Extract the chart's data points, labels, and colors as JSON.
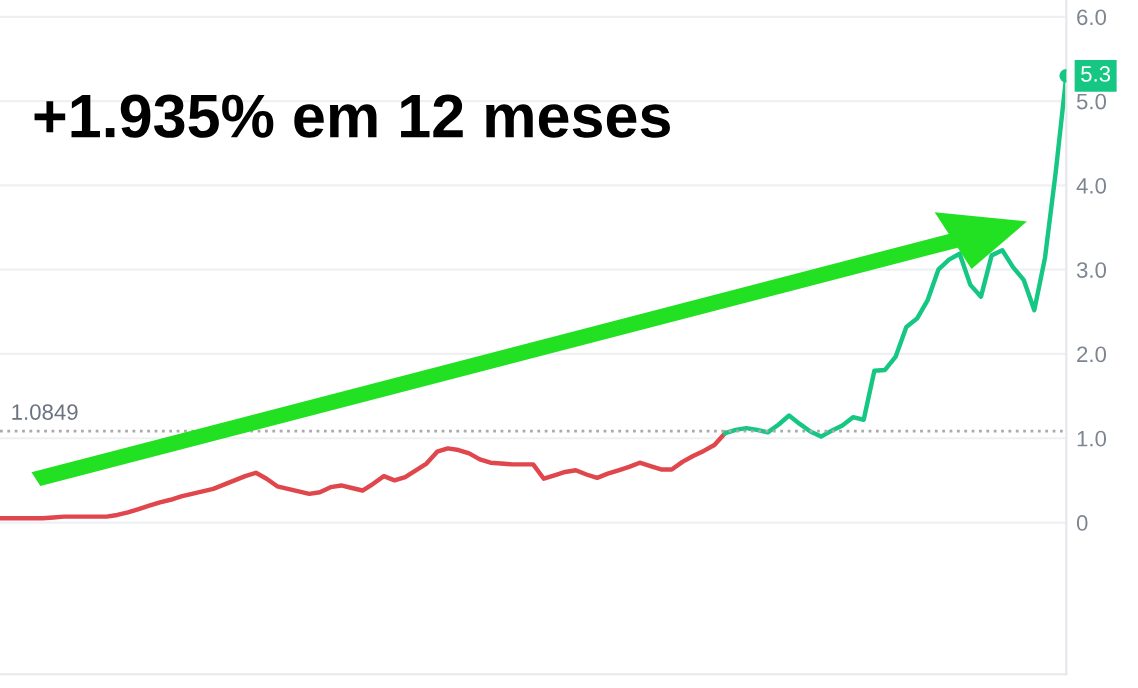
{
  "chart_data": {
    "type": "line",
    "categories": [
      null,
      null,
      null,
      null,
      null,
      null,
      null,
      null,
      null,
      null,
      null,
      null,
      null,
      null,
      null,
      null,
      null,
      null,
      null,
      null,
      null,
      null,
      null,
      null,
      null,
      null,
      null,
      null,
      null,
      null,
      null,
      null,
      null,
      null,
      null,
      null,
      null,
      null,
      null,
      null,
      null,
      null,
      null,
      null,
      null,
      null,
      null,
      null,
      null,
      null,
      null,
      null,
      null,
      null,
      null,
      null,
      null,
      null,
      null,
      null,
      null,
      null,
      null,
      null,
      null,
      null,
      null,
      null,
      null,
      null,
      null,
      null,
      null,
      null,
      null,
      null,
      null,
      null,
      null,
      null,
      null,
      null,
      null,
      null,
      null,
      null,
      null,
      null,
      null,
      null,
      null,
      null,
      null,
      null,
      null,
      null,
      null,
      null,
      null,
      null,
      null
    ],
    "series": [
      {
        "color": "#e0474c",
        "values": [
          0.05,
          0.05,
          0.05,
          0.05,
          0.05,
          0.06,
          0.07,
          0.07,
          0.07,
          0.07,
          0.07,
          0.09,
          0.12,
          0.16,
          0.2,
          0.24,
          0.27,
          0.31,
          0.34,
          0.37,
          0.4,
          0.45,
          0.5,
          0.55,
          0.59,
          0.52,
          0.43,
          0.4,
          0.37,
          0.34,
          0.36,
          0.42,
          0.44,
          0.41,
          0.38,
          0.46,
          0.55,
          0.5,
          0.54,
          0.62,
          0.7,
          0.84,
          0.88,
          0.86,
          0.82,
          0.75,
          0.71,
          0.7,
          0.69,
          0.69,
          0.69,
          0.52,
          0.56,
          0.6,
          0.62,
          0.57,
          0.53,
          0.58,
          0.62,
          0.66,
          0.71,
          0.67,
          0.63,
          0.63,
          0.72,
          0.79,
          0.85,
          0.92,
          1.06,
          null,
          null,
          null,
          null,
          null,
          null,
          null,
          null,
          null,
          null,
          null,
          null,
          null,
          null,
          null,
          null,
          null,
          null,
          null,
          null,
          null,
          null,
          null,
          null,
          null,
          null,
          null,
          null,
          null,
          null,
          null,
          null
        ]
      },
      {
        "color": "#16c784",
        "values": [
          null,
          null,
          null,
          null,
          null,
          null,
          null,
          null,
          null,
          null,
          null,
          null,
          null,
          null,
          null,
          null,
          null,
          null,
          null,
          null,
          null,
          null,
          null,
          null,
          null,
          null,
          null,
          null,
          null,
          null,
          null,
          null,
          null,
          null,
          null,
          null,
          null,
          null,
          null,
          null,
          null,
          null,
          null,
          null,
          null,
          null,
          null,
          null,
          null,
          null,
          null,
          null,
          null,
          null,
          null,
          null,
          null,
          null,
          null,
          null,
          null,
          null,
          null,
          null,
          null,
          null,
          null,
          null,
          1.06,
          1.1,
          1.12,
          1.1,
          1.07,
          1.16,
          1.27,
          1.17,
          1.08,
          1.02,
          1.09,
          1.15,
          1.25,
          1.22,
          1.8,
          1.81,
          1.97,
          2.32,
          2.42,
          2.64,
          3.0,
          3.12,
          3.19,
          2.82,
          2.68,
          3.17,
          3.23,
          3.03,
          2.88,
          2.52,
          3.14,
          4.15,
          5.3
        ]
      }
    ],
    "ylim": [
      -1.8,
      6.2
    ],
    "yticks": [
      0,
      {
        "value": 1,
        "label": "1.0"
      },
      {
        "value": 2,
        "label": "2.0"
      },
      {
        "value": 3,
        "label": "3.0"
      },
      {
        "value": 4,
        "label": "4.0"
      },
      {
        "value": 5,
        "label": "5.0"
      },
      {
        "value": 6,
        "label": "6.0"
      }
    ],
    "tick_labels": "y",
    "grid": "y",
    "marker": "none",
    "line_style": "solid",
    "ref_lines": [
      {
        "axis": "y",
        "value": 1.0849,
        "label": "1.0849",
        "color": "#aaaaaa",
        "line_style": "dotted"
      }
    ],
    "annotations": [
      "+1.935% em 12 meses",
      "5.3"
    ]
  }
}
